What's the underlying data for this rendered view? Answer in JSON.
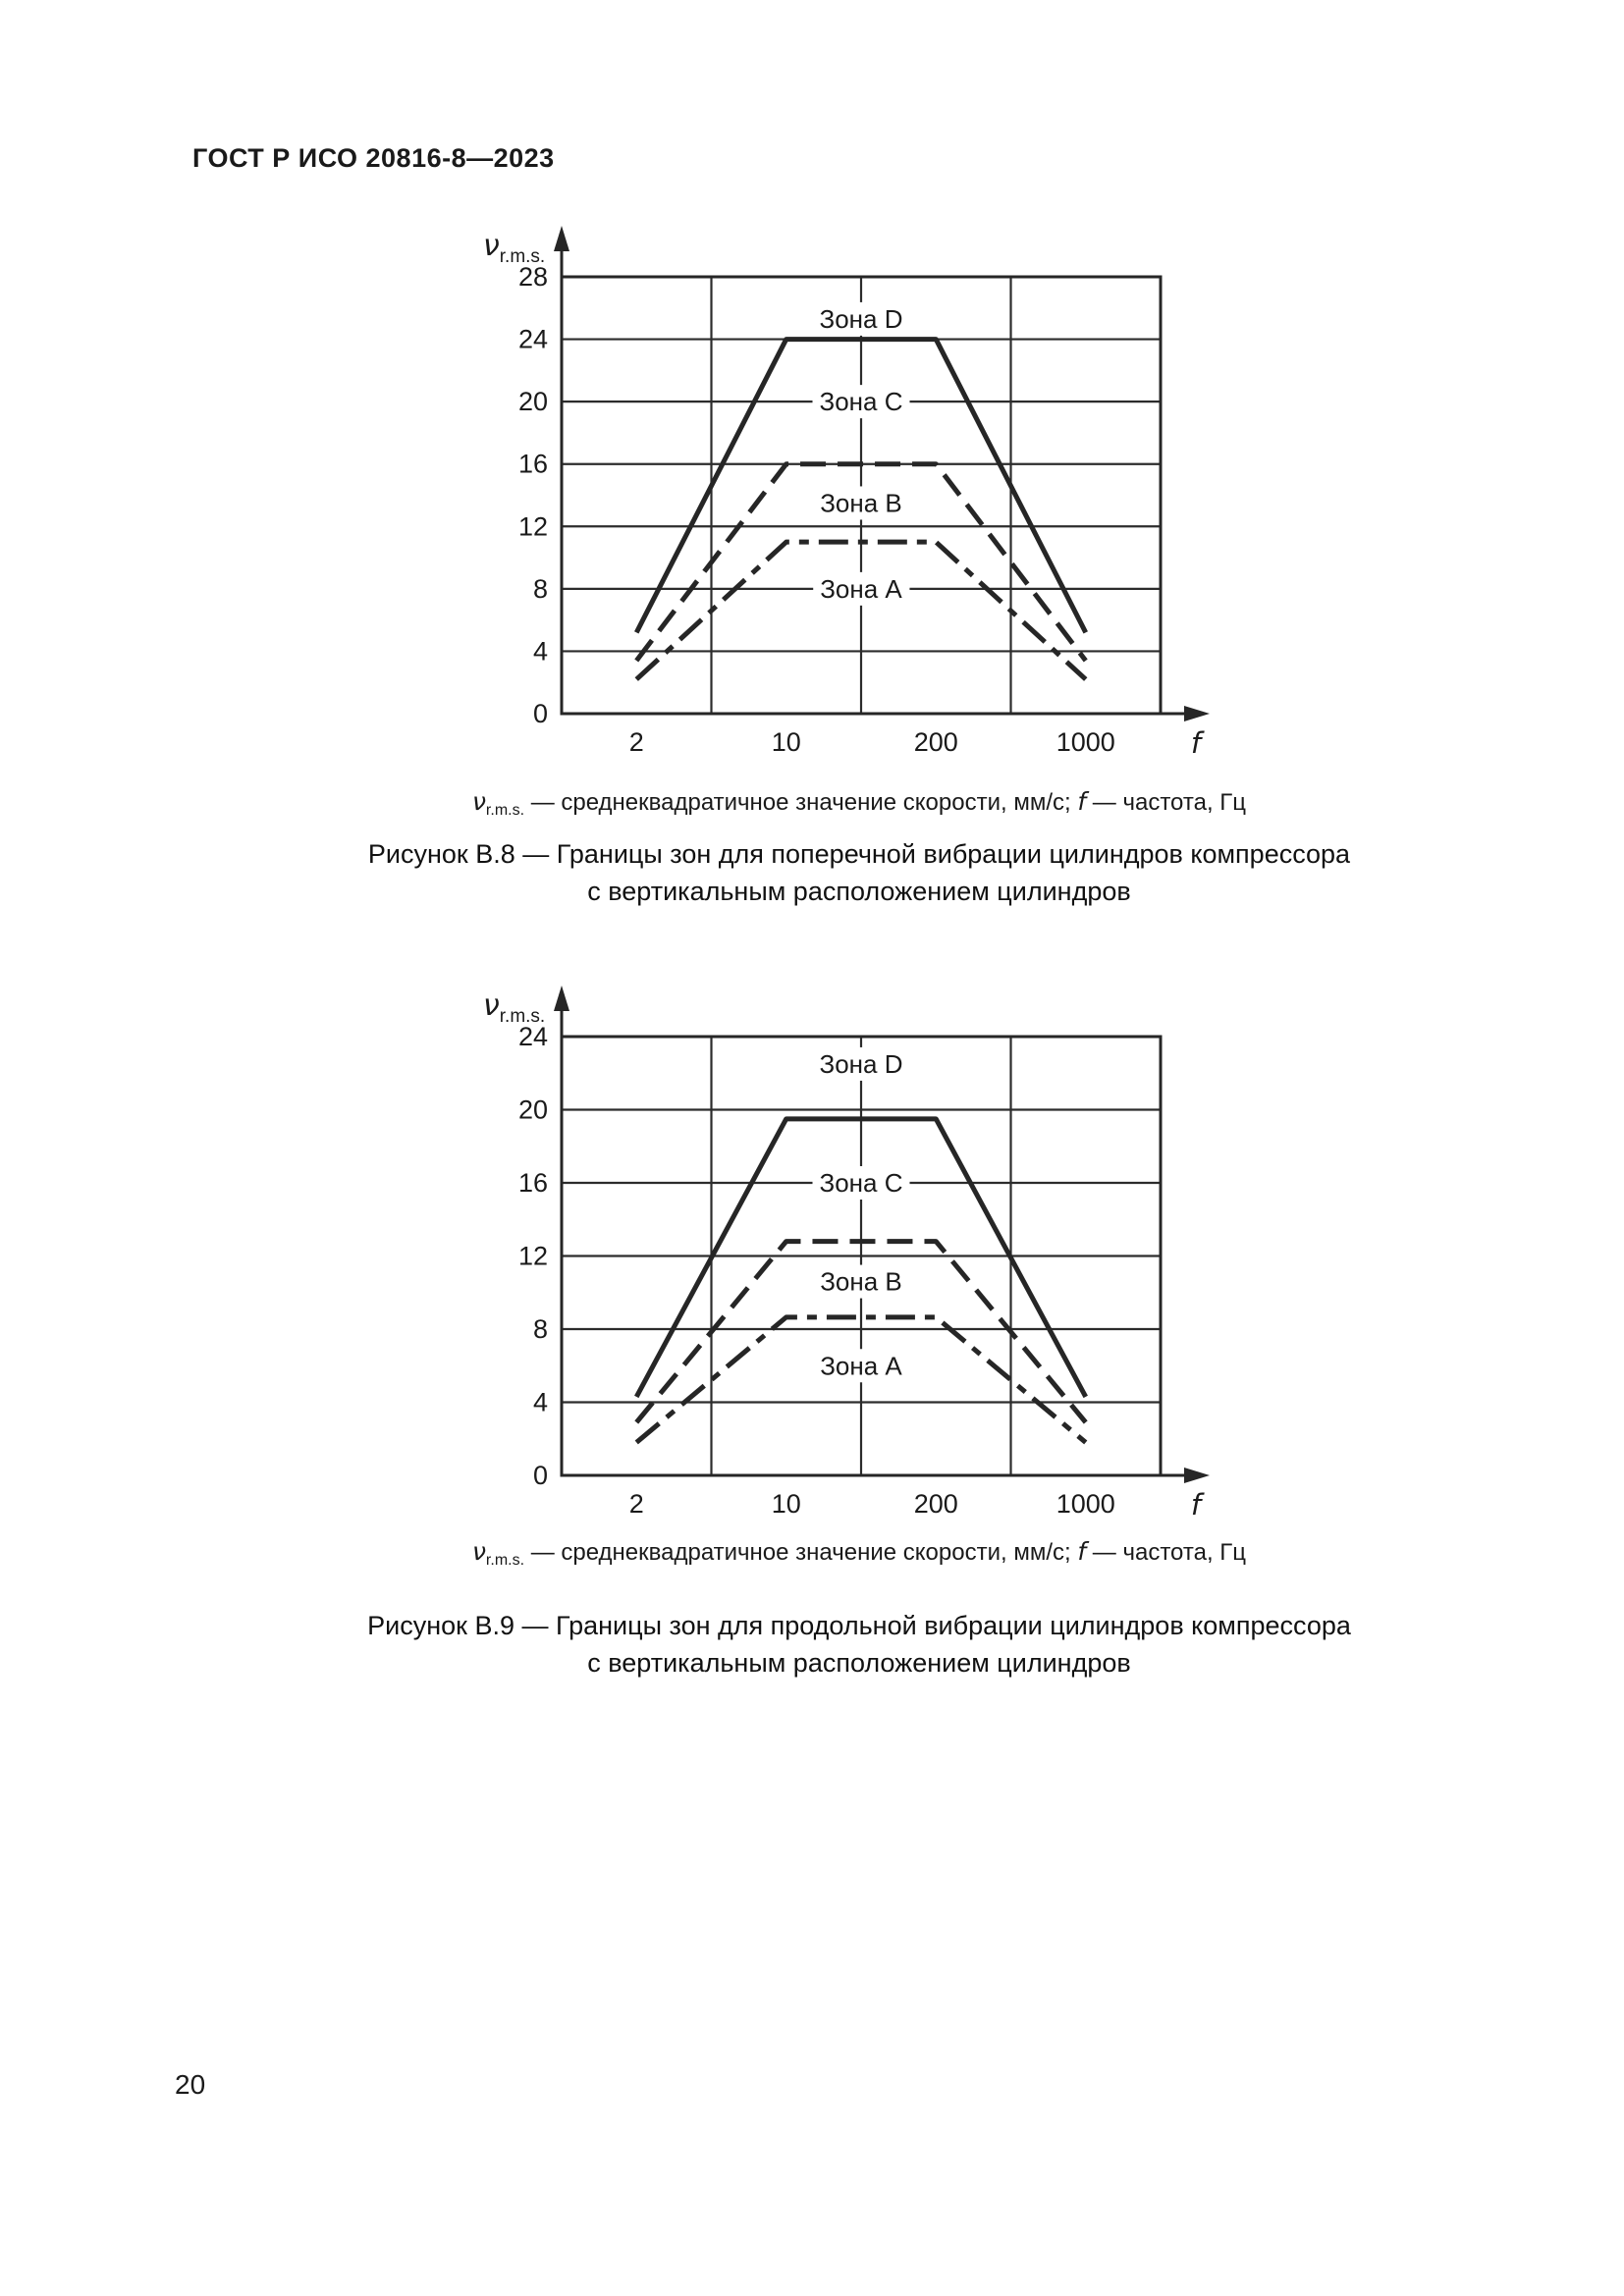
{
  "page": {
    "header": "ГОСТ Р ИСО 20816-8—2023",
    "page_number": "20"
  },
  "figures": [
    {
      "legend": {
        "v_symbol": "ν",
        "v_subscript": "r.m.s.",
        "v_text": " — среднеквадратичное значение скорости, мм/с; ",
        "f_symbol": "f",
        "f_text": " — частота, Гц"
      },
      "caption_line1": "Рисунок В.8 — Границы зон для поперечной вибрации цилиндров компрессора",
      "caption_line2": "с вертикальным расположением цилиндров"
    },
    {
      "legend": {
        "v_symbol": "ν",
        "v_subscript": "r.m.s.",
        "v_text": " — среднеквадратичное значение скорости, мм/с; ",
        "f_symbol": "f",
        "f_text": " — частота, Гц"
      },
      "caption_line1": "Рисунок В.9 — Границы зон для продольной вибрации цилиндров компрессора",
      "caption_line2": "с вертикальным расположением цилиндров"
    }
  ],
  "chart_data": [
    {
      "type": "line",
      "title": "Рисунок В.8 — Границы зон для поперечной вибрации цилиндров компрессора с вертикальным расположением цилиндров",
      "ylabel": "ν r.m.s., мм/с",
      "xlabel": "f, Гц",
      "y_symbol": "ν",
      "y_symbol_sub": "r.m.s.",
      "x_symbol": "f",
      "y_unit": "мм/с",
      "x_unit": "Гц",
      "ylim": [
        0,
        28
      ],
      "y_ticks": [
        0,
        4,
        8,
        12,
        16,
        20,
        24,
        28
      ],
      "x_tick_labels": [
        "2",
        "10",
        "200",
        "1000"
      ],
      "x_scale_note": "четыре равных логарифмических сегмента, подписи в серединах сегментов",
      "grid": true,
      "legend_position": "none",
      "series": [
        {
          "name": "Граница зон C/D (верх зоны C)",
          "style": "solid",
          "points": [
            {
              "f": 2,
              "v": 5.2
            },
            {
              "f": 10,
              "v": 24
            },
            {
              "f": 200,
              "v": 24
            },
            {
              "f": 1000,
              "v": 5.2
            }
          ]
        },
        {
          "name": "Граница зон B/C (верх зоны B)",
          "style": "dashed",
          "points": [
            {
              "f": 2,
              "v": 3.4
            },
            {
              "f": 10,
              "v": 16
            },
            {
              "f": 200,
              "v": 16
            },
            {
              "f": 1000,
              "v": 3.4
            }
          ]
        },
        {
          "name": "Граница зон A/B (верх зоны A)",
          "style": "dashdot",
          "points": [
            {
              "f": 2,
              "v": 2.2
            },
            {
              "f": 10,
              "v": 11
            },
            {
              "f": 200,
              "v": 11
            },
            {
              "f": 1000,
              "v": 2.2
            }
          ]
        }
      ],
      "zone_labels": [
        {
          "text": "Зона D",
          "u": 2,
          "v": 25.3
        },
        {
          "text": "Зона C",
          "u": 2,
          "v": 20
        },
        {
          "text": "Зона B",
          "u": 2,
          "v": 13.5
        },
        {
          "text": "Зона A",
          "u": 2,
          "v": 8
        }
      ]
    },
    {
      "type": "line",
      "title": "Рисунок В.9 — Границы зон для продольной вибрации цилиндров компрессора с вертикальным расположением цилиндров",
      "ylabel": "ν r.m.s., мм/с",
      "xlabel": "f, Гц",
      "y_symbol": "ν",
      "y_symbol_sub": "r.m.s.",
      "x_symbol": "f",
      "y_unit": "мм/с",
      "x_unit": "Гц",
      "ylim": [
        0,
        24
      ],
      "y_ticks": [
        0,
        4,
        8,
        12,
        16,
        20,
        24
      ],
      "x_tick_labels": [
        "2",
        "10",
        "200",
        "1000"
      ],
      "x_scale_note": "четыре равных логарифмических сегмента, подписи в серединах сегментов",
      "grid": true,
      "legend_position": "none",
      "series": [
        {
          "name": "Граница зон C/D (верх зоны C)",
          "style": "solid",
          "points": [
            {
              "f": 2,
              "v": 4.3
            },
            {
              "f": 10,
              "v": 19.5
            },
            {
              "f": 200,
              "v": 19.5
            },
            {
              "f": 1000,
              "v": 4.3
            }
          ]
        },
        {
          "name": "Граница зон B/C (верх зоны B)",
          "style": "dashed",
          "points": [
            {
              "f": 2,
              "v": 2.9
            },
            {
              "f": 10,
              "v": 12.8
            },
            {
              "f": 200,
              "v": 12.8
            },
            {
              "f": 1000,
              "v": 2.9
            }
          ]
        },
        {
          "name": "Граница зон A/B (верх зоны A)",
          "style": "dashdot",
          "points": [
            {
              "f": 2,
              "v": 1.8
            },
            {
              "f": 10,
              "v": 8.65
            },
            {
              "f": 200,
              "v": 8.65
            },
            {
              "f": 1000,
              "v": 1.8
            }
          ]
        }
      ],
      "zone_labels": [
        {
          "text": "Зона D",
          "u": 2,
          "v": 22.5
        },
        {
          "text": "Зона C",
          "u": 2,
          "v": 16
        },
        {
          "text": "Зона B",
          "u": 2,
          "v": 10.6
        },
        {
          "text": "Зона A",
          "u": 2,
          "v": 6
        }
      ]
    }
  ]
}
